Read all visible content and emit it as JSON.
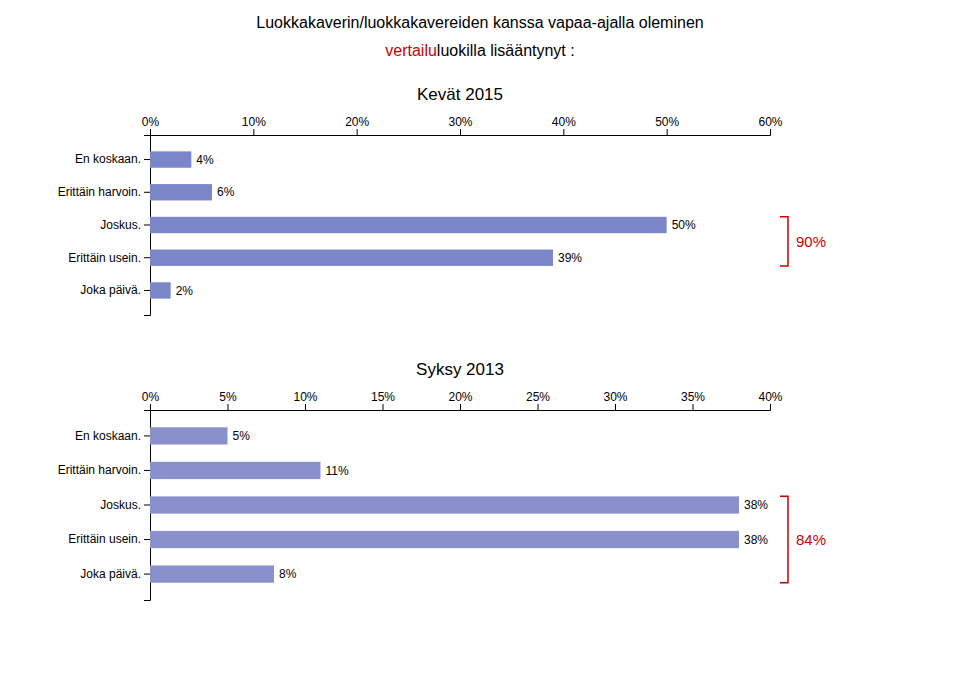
{
  "title": "Luokkakaverin/luokkakavereiden kanssa vapaa-ajalla oleminen",
  "subtitle": [
    {
      "text": "vertailu",
      "color": "#CC0000"
    },
    {
      "text": "luokilla lisääntynyt :"
    }
  ],
  "chart_data": [
    {
      "type": "bar",
      "orientation": "horizontal",
      "title": "Kevät 2015",
      "categories": [
        "En koskaan.",
        "Erittäin harvoin.",
        "Joskus.",
        "Erittäin usein.",
        "Joka päivä."
      ],
      "values": [
        4,
        6,
        50,
        39,
        2
      ],
      "value_labels": [
        "4%",
        "6%",
        "50%",
        "39%",
        "2%"
      ],
      "data_labels": true,
      "color": "#7B86C8",
      "xlim": [
        0,
        60
      ],
      "xticks": [
        {
          "value": 0,
          "label": "0%"
        },
        {
          "value": 10,
          "label": "10%"
        },
        {
          "value": 20,
          "label": "20%"
        },
        {
          "value": 30,
          "label": "30%"
        },
        {
          "value": 40,
          "label": "40%"
        },
        {
          "value": 50,
          "label": "50%"
        },
        {
          "value": 60,
          "label": "60%"
        }
      ],
      "grid": false,
      "annotations": [
        {
          "text": "90%",
          "categories": [
            "Joskus.",
            "Erittäin usein."
          ],
          "color": "#CC0000"
        }
      ]
    },
    {
      "type": "bar",
      "orientation": "horizontal",
      "title": "Syksy 2013",
      "categories": [
        "En koskaan.",
        "Erittäin harvoin.",
        "Joskus.",
        "Erittäin usein.",
        "Joka päivä."
      ],
      "values": [
        5,
        11,
        38,
        38,
        8
      ],
      "value_labels": [
        "5%",
        "11%",
        "38%",
        "38%",
        "8%"
      ],
      "data_labels": true,
      "color": "#8A90CC",
      "xlim": [
        0,
        40
      ],
      "xticks": [
        {
          "value": 0,
          "label": "0%"
        },
        {
          "value": 5,
          "label": "5%"
        },
        {
          "value": 10,
          "label": "10%"
        },
        {
          "value": 15,
          "label": "15%"
        },
        {
          "value": 20,
          "label": "20%"
        },
        {
          "value": 25,
          "label": "25%"
        },
        {
          "value": 30,
          "label": "30%"
        },
        {
          "value": 35,
          "label": "35%"
        },
        {
          "value": 40,
          "label": "40%"
        }
      ],
      "grid": false,
      "annotations": [
        {
          "text": "84%",
          "categories": [
            "Joskus.",
            "Erittäin usein.",
            "Joka päivä."
          ],
          "color": "#CC0000"
        }
      ]
    }
  ]
}
